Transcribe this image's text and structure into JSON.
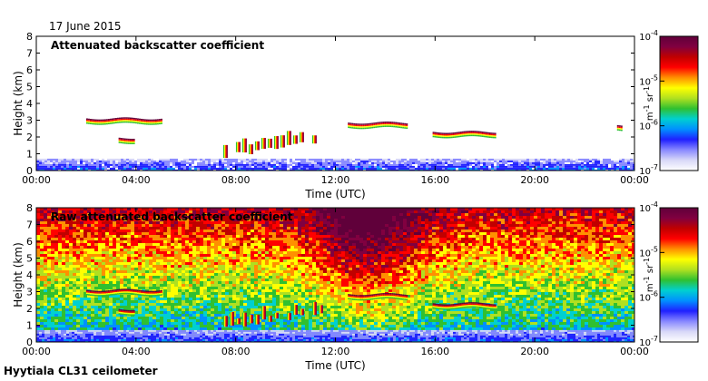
{
  "figure": {
    "date": "17 June 2015",
    "instrument": "Hyytiala CL31 ceilometer"
  },
  "colorbar": {
    "unit_parts": [
      "m",
      "-1",
      " sr",
      "-1"
    ],
    "ticks": [
      {
        "base": "10",
        "exp": "-4",
        "value": 0.0001
      },
      {
        "base": "10",
        "exp": "-5",
        "value": 1e-05
      },
      {
        "base": "10",
        "exp": "-6",
        "value": 1e-06
      },
      {
        "base": "10",
        "exp": "-7",
        "value": 1e-07
      }
    ],
    "scale": "log",
    "colors": [
      "#ffffff",
      "#d8d8f8",
      "#8888ff",
      "#2020ff",
      "#0090ff",
      "#00d0d0",
      "#30c030",
      "#b0e020",
      "#ffff00",
      "#ff9000",
      "#ff0000",
      "#c00000",
      "#800040",
      "#60003a"
    ]
  },
  "chart_data": [
    {
      "type": "heatmap",
      "title": "Attenuated backscatter coefficient",
      "xlabel": "Time (UTC)",
      "ylabel": "Height (km)",
      "xticks": [
        "00:00",
        "04:00",
        "08:00",
        "12:00",
        "16:00",
        "20:00",
        "00:00"
      ],
      "yticks": [
        "0",
        "1",
        "2",
        "3",
        "4",
        "5",
        "6",
        "7",
        "8"
      ],
      "xlim_hours": [
        0,
        24
      ],
      "ylim_km": [
        0,
        8
      ],
      "color_scale": "log",
      "clim": [
        1e-07,
        0.0001
      ],
      "background": "no signal above noise",
      "features": [
        {
          "kind": "boundary-layer aerosol",
          "time_start": 0,
          "time_end": 24,
          "height_top_km": 0.6
        },
        {
          "kind": "cloud layer",
          "time_start": 2.0,
          "time_end": 5.0,
          "height_km": 3.0
        },
        {
          "kind": "cloud layer",
          "time_start": 3.3,
          "time_end": 3.9,
          "height_km": 1.85
        },
        {
          "kind": "cloud fragments",
          "time_start": 7.5,
          "time_end": 11.7,
          "height_km_from": 0.9,
          "height_km_to": 1.8
        },
        {
          "kind": "cloud layer",
          "time_start": 12.5,
          "time_end": 14.9,
          "height_km": 2.75
        },
        {
          "kind": "cloud layer",
          "time_start": 15.9,
          "time_end": 18.4,
          "height_km": 2.2
        },
        {
          "kind": "cloud fragment",
          "time_start": 23.3,
          "time_end": 23.5,
          "height_km": 2.6
        }
      ]
    },
    {
      "type": "heatmap",
      "title": "Raw attenuated backscatter coefficient",
      "xlabel": "Time (UTC)",
      "ylabel": "Height (km)",
      "xticks": [
        "00:00",
        "04:00",
        "08:00",
        "12:00",
        "16:00",
        "20:00",
        "00:00"
      ],
      "yticks": [
        "0",
        "1",
        "2",
        "3",
        "4",
        "5",
        "6",
        "7",
        "8"
      ],
      "xlim_hours": [
        0,
        24
      ],
      "ylim_km": [
        0,
        8
      ],
      "color_scale": "log",
      "clim": [
        1e-07,
        0.0001
      ],
      "background": "noise increasing with height, strongest around 12:00-15:00",
      "features": [
        {
          "kind": "boundary-layer aerosol",
          "time_start": 0,
          "time_end": 24,
          "height_top_km": 0.6
        },
        {
          "kind": "cloud layer",
          "time_start": 2.0,
          "time_end": 5.0,
          "height_km": 3.0
        },
        {
          "kind": "cloud layer",
          "time_start": 3.3,
          "time_end": 3.9,
          "height_km": 1.85
        },
        {
          "kind": "cloud fragments",
          "time_start": 7.5,
          "time_end": 11.7,
          "height_km_from": 0.9,
          "height_km_to": 1.8
        },
        {
          "kind": "cloud layer",
          "time_start": 12.5,
          "time_end": 14.9,
          "height_km": 2.75
        },
        {
          "kind": "cloud layer",
          "time_start": 15.9,
          "time_end": 18.4,
          "height_km": 2.2
        }
      ]
    }
  ]
}
